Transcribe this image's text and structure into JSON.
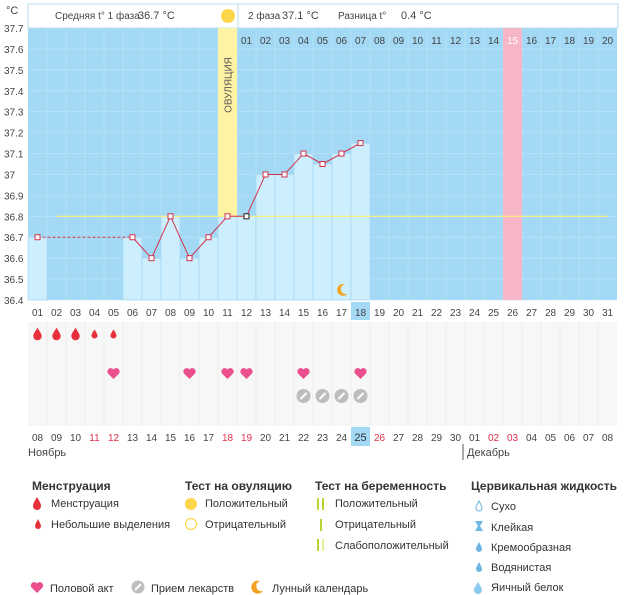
{
  "header": {
    "unit": "°C",
    "phase1_label": "Средняя t° 1 фаза",
    "phase1_value": "36.7 °C",
    "phase2_label": "2 фаза",
    "phase2_value": "37.1 °C",
    "diff_label": "Разница t°",
    "diff_value": "0.4 °C"
  },
  "ovulation_label": "ОВУЛЯЦИЯ",
  "chart_data": {
    "type": "line",
    "ylim": [
      36.4,
      37.7
    ],
    "yticks": [
      "37.7",
      "37.6",
      "37.5",
      "37.4",
      "37.3",
      "37.2",
      "37.1",
      "37",
      "36.9",
      "36.8",
      "36.7",
      "36.6",
      "36.5",
      "36.4"
    ],
    "cycle_days_top": [
      "01",
      "02",
      "03",
      "04",
      "05",
      "06",
      "07",
      "08",
      "09",
      "10",
      "11",
      "12",
      "13",
      "14",
      "15",
      "16",
      "17",
      "18",
      "19",
      "20"
    ],
    "days": [
      "01",
      "02",
      "03",
      "04",
      "05",
      "06",
      "07",
      "08",
      "09",
      "10",
      "11",
      "12",
      "13",
      "14",
      "15",
      "16",
      "17",
      "18",
      "19",
      "20",
      "21",
      "22",
      "23",
      "24",
      "25",
      "26",
      "27",
      "28",
      "29",
      "30",
      "31"
    ],
    "temperatures": [
      36.7,
      null,
      null,
      null,
      null,
      36.7,
      36.6,
      36.8,
      36.6,
      36.7,
      36.8,
      36.8,
      37.0,
      37.0,
      37.1,
      37.05,
      37.1,
      37.15,
      null,
      null,
      null,
      null,
      null,
      null,
      null,
      null,
      null,
      null,
      null,
      null,
      null
    ],
    "coverline": 36.8,
    "ovulation_day": "11",
    "today": "18",
    "expected_period_day": "26",
    "dates": [
      "08",
      "09",
      "10",
      "11",
      "12",
      "13",
      "14",
      "15",
      "16",
      "17",
      "18",
      "19",
      "20",
      "21",
      "22",
      "23",
      "24",
      "25",
      "26",
      "27",
      "28",
      "29",
      "30",
      "01",
      "02",
      "03",
      "04",
      "05",
      "06",
      "07",
      "08"
    ],
    "today_date": "25",
    "month_1": "Ноябрь",
    "month_2": "Декабрь",
    "menstruation": {
      "heavy": [
        1,
        2,
        3
      ],
      "light": [
        4,
        5
      ]
    },
    "intercourse_days": [
      5,
      9,
      11,
      12,
      15,
      18
    ],
    "medication_days": [
      15,
      16,
      17,
      18
    ],
    "moon_day": 17
  },
  "legend": {
    "menstruation": {
      "title": "Менструация",
      "heavy": "Менструация",
      "light": "Небольшие выделения"
    },
    "ovulation_test": {
      "title": "Тест на овуляцию",
      "positive": "Положительный",
      "negative": "Отрицательный"
    },
    "pregnancy_test": {
      "title": "Тест на беременность",
      "positive": "Положительный",
      "negative": "Отрицательный",
      "weak": "Слабоположительный"
    },
    "cervical_fluid": {
      "title": "Цервикальная жидкость",
      "dry": "Сухо",
      "sticky": "Клейкая",
      "creamy": "Кремообразная",
      "watery": "Водянистая",
      "eggwhite": "Яичный белок"
    },
    "bottom": {
      "intercourse": "Половой акт",
      "medication": "Прием лекарств",
      "moon": "Лунный календарь"
    }
  },
  "colors": {
    "sky": "#a3d9f5",
    "bar": "#cdeefd",
    "line": "#d0334c",
    "ovulation": "#fef3a3",
    "period": "#f7b6c8",
    "today": "#a3d9f5",
    "heart": "#ec4f8e",
    "drop": "#e6303c",
    "moon": "#f2a21e",
    "red_text": "#e0304a"
  }
}
